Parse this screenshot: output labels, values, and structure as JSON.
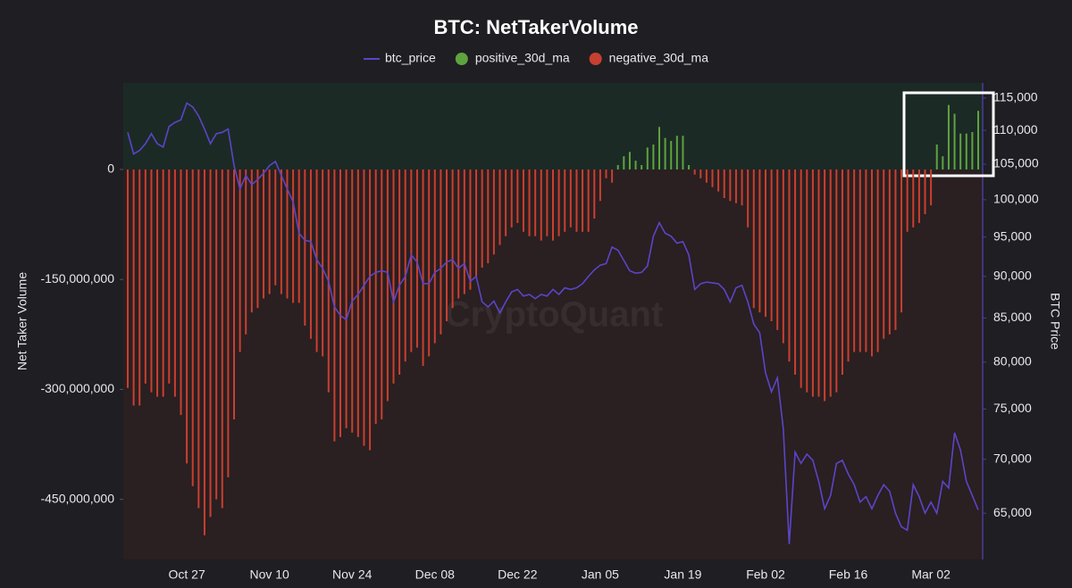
{
  "chart_data": {
    "type": "bar",
    "title": "BTC: NetTakerVolume",
    "watermark": "CryptoQuant",
    "y_label": "Net Taker Volume",
    "y2_label": "BTC Price",
    "categories": [
      null,
      null,
      null,
      null,
      null,
      null,
      null,
      null,
      null,
      null,
      "Oct 27",
      null,
      null,
      null,
      null,
      null,
      null,
      null,
      null,
      null,
      null,
      null,
      null,
      null,
      "Nov 10",
      null,
      null,
      null,
      null,
      null,
      null,
      null,
      null,
      null,
      null,
      null,
      null,
      null,
      "Nov 24",
      null,
      null,
      null,
      null,
      null,
      null,
      null,
      null,
      null,
      null,
      null,
      null,
      null,
      "Dec 08",
      null,
      null,
      null,
      null,
      null,
      null,
      null,
      null,
      null,
      null,
      null,
      null,
      null,
      "Dec 22",
      null,
      null,
      null,
      null,
      null,
      null,
      null,
      null,
      null,
      null,
      null,
      null,
      null,
      "Jan 05",
      null,
      null,
      null,
      null,
      null,
      null,
      null,
      null,
      null,
      null,
      null,
      null,
      null,
      "Jan 19",
      null,
      null,
      null,
      null,
      null,
      null,
      null,
      null,
      null,
      null,
      null,
      null,
      null,
      "Feb 02",
      null,
      null,
      null,
      null,
      null,
      null,
      null,
      null,
      null,
      null,
      null,
      null,
      null,
      "Feb 16",
      null,
      null,
      null,
      null,
      null,
      null,
      null,
      null,
      null,
      null,
      null,
      null,
      null,
      "Mar 02",
      null,
      null,
      null,
      null,
      null,
      null,
      null,
      null
    ],
    "series": [
      {
        "name": "btc_price",
        "type": "line",
        "axis": "y2",
        "color": "#5a45c8",
        "values": [
          109700,
          106500,
          107000,
          108000,
          109500,
          108000,
          107500,
          110600,
          111200,
          111600,
          114200,
          113600,
          112200,
          110200,
          108000,
          109500,
          109700,
          110200,
          104800,
          101500,
          103400,
          102100,
          102800,
          103700,
          104800,
          105400,
          103400,
          101500,
          99700,
          95500,
          94600,
          94400,
          92100,
          91000,
          89400,
          86300,
          85300,
          84800,
          87000,
          87800,
          88900,
          90000,
          90500,
          90700,
          90500,
          86900,
          88900,
          90000,
          92700,
          91800,
          89100,
          89100,
          90500,
          91000,
          91800,
          92100,
          91000,
          91600,
          89400,
          90000,
          86900,
          86300,
          87000,
          85600,
          86900,
          88100,
          88400,
          87600,
          87800,
          87300,
          87800,
          87600,
          88400,
          87800,
          88600,
          88400,
          88600,
          89100,
          90000,
          90800,
          91400,
          91600,
          93700,
          93300,
          92000,
          90700,
          90400,
          90500,
          91300,
          95100,
          96900,
          95500,
          95100,
          94200,
          94400,
          92700,
          88400,
          89100,
          89300,
          89200,
          89100,
          88400,
          86900,
          88600,
          88900,
          86900,
          84300,
          83300,
          78800,
          76800,
          78300,
          73000,
          62300,
          70700,
          69600,
          70500,
          69900,
          67900,
          65400,
          66600,
          69600,
          69900,
          68600,
          67600,
          66000,
          66500,
          65400,
          66600,
          67600,
          67000,
          65000,
          63800,
          63500,
          67600,
          66500,
          65000,
          66000,
          65000,
          67900,
          67300,
          72600,
          70900,
          67900,
          66600,
          65300
        ]
      },
      {
        "name": "positive_30d_ma",
        "type": "bar",
        "color": "#5fa33e",
        "values": [
          null,
          null,
          null,
          null,
          null,
          null,
          null,
          null,
          null,
          null,
          null,
          null,
          null,
          null,
          null,
          null,
          null,
          null,
          null,
          null,
          null,
          null,
          null,
          null,
          null,
          null,
          null,
          null,
          null,
          null,
          null,
          null,
          null,
          null,
          null,
          null,
          null,
          null,
          null,
          null,
          null,
          null,
          null,
          null,
          null,
          null,
          null,
          null,
          null,
          null,
          null,
          null,
          null,
          null,
          null,
          null,
          null,
          null,
          null,
          null,
          null,
          null,
          null,
          null,
          null,
          null,
          null,
          null,
          null,
          null,
          null,
          null,
          null,
          null,
          null,
          null,
          null,
          null,
          null,
          null,
          null,
          null,
          null,
          6000000,
          18000000,
          24000000,
          12000000,
          6000000,
          30000000,
          34000000,
          58000000,
          43000000,
          39000000,
          46000000,
          46000000,
          6000000,
          null,
          null,
          null,
          null,
          null,
          null,
          null,
          null,
          null,
          null,
          null,
          null,
          null,
          null,
          null,
          null,
          null,
          null,
          null,
          null,
          null,
          null,
          null,
          null,
          null,
          null,
          null,
          null,
          null,
          null,
          null,
          null,
          null,
          null,
          null,
          null,
          null,
          null,
          null,
          null,
          null,
          34000000,
          18000000,
          88000000,
          76000000,
          49000000,
          49000000,
          51000000,
          80000000
        ]
      },
      {
        "name": "negative_30d_ma",
        "type": "bar",
        "color": "#c8402f",
        "values": [
          -298000000,
          -322000000,
          -322000000,
          -292000000,
          -304000000,
          -310000000,
          -310000000,
          -292000000,
          -310000000,
          -335000000,
          -401000000,
          -432000000,
          -462000000,
          -499000000,
          -474000000,
          -450000000,
          -462000000,
          -420000000,
          -341000000,
          -249000000,
          -225000000,
          -195000000,
          -189000000,
          -176000000,
          -170000000,
          -158000000,
          -170000000,
          -176000000,
          -182000000,
          -182000000,
          -213000000,
          -231000000,
          -249000000,
          -255000000,
          -304000000,
          -371000000,
          -365000000,
          -353000000,
          -359000000,
          -365000000,
          -377000000,
          -383000000,
          -347000000,
          -341000000,
          -316000000,
          -292000000,
          -280000000,
          -262000000,
          -249000000,
          -243000000,
          -268000000,
          -255000000,
          -237000000,
          -225000000,
          -207000000,
          -189000000,
          -176000000,
          -170000000,
          -164000000,
          -146000000,
          -134000000,
          -128000000,
          -116000000,
          -103000000,
          -91000000,
          -79000000,
          -73000000,
          -85000000,
          -91000000,
          -91000000,
          -97000000,
          -91000000,
          -97000000,
          -91000000,
          -85000000,
          -79000000,
          -85000000,
          -85000000,
          -85000000,
          -67000000,
          -43000000,
          -12000000,
          -18000000,
          null,
          null,
          null,
          null,
          null,
          null,
          null,
          null,
          null,
          null,
          null,
          null,
          null,
          -7000000,
          -12000000,
          -18000000,
          -24000000,
          -30000000,
          -39000000,
          -43000000,
          -46000000,
          -49000000,
          -79000000,
          -189000000,
          -195000000,
          -201000000,
          -207000000,
          -219000000,
          -237000000,
          -262000000,
          -280000000,
          -298000000,
          -304000000,
          -310000000,
          -310000000,
          -316000000,
          -310000000,
          -304000000,
          -280000000,
          -262000000,
          -249000000,
          -249000000,
          -249000000,
          -255000000,
          -249000000,
          -231000000,
          -225000000,
          -219000000,
          -195000000,
          -85000000,
          -79000000,
          -73000000,
          -61000000,
          -49000000,
          null,
          null,
          null,
          null,
          null,
          null,
          null,
          null
        ]
      }
    ],
    "ylim": [
      -532000000,
      118000000
    ],
    "yticks": [
      0,
      {
        "value": -150000000,
        "label": "-150,000,000"
      },
      {
        "value": -300000000,
        "label": "-300,000,000"
      },
      {
        "value": -450000000,
        "label": "-450,000,000"
      }
    ],
    "y2lim": [
      61000,
      117400
    ],
    "y2log": true,
    "y2ticks": [
      {
        "value": 65000,
        "label": "65,000"
      },
      {
        "value": 70000,
        "label": "70,000"
      },
      {
        "value": 75000,
        "label": "75,000"
      },
      {
        "value": 80000,
        "label": "80,000"
      },
      {
        "value": 85000,
        "label": "85,000"
      },
      {
        "value": 90000,
        "label": "90,000"
      },
      {
        "value": 95000,
        "label": "95,000"
      },
      {
        "value": 100000,
        "label": "100,000"
      },
      {
        "value": 105000,
        "label": "105,000"
      },
      {
        "value": 110000,
        "label": "110,000"
      },
      {
        "value": 115000,
        "label": "115,000"
      }
    ]
  }
}
